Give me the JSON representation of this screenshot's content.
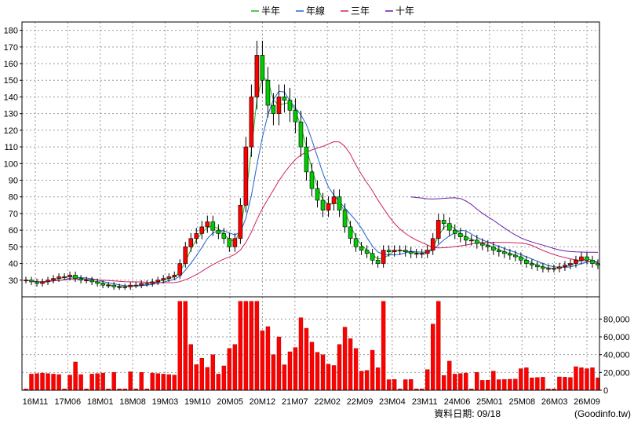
{
  "chart_data": {
    "type": "candlestick",
    "legend": [
      {
        "name": "半年",
        "color": "#22b022"
      },
      {
        "name": "年線",
        "color": "#1f62d0"
      },
      {
        "name": "三年",
        "color": "#cc2266"
      },
      {
        "name": "十年",
        "color": "#6a1aa8"
      }
    ],
    "x_labels": [
      "16M11",
      "17M06",
      "18M01",
      "18M08",
      "19M03",
      "19M10",
      "20M05",
      "20M12",
      "21M07",
      "22M02",
      "22M09",
      "23M04",
      "23M11",
      "24M06",
      "25M01",
      "25M08",
      "26M03",
      "26M09"
    ],
    "price_axis": {
      "ticks": [
        30,
        40,
        50,
        60,
        70,
        80,
        90,
        100,
        110,
        120,
        130,
        140,
        150,
        160,
        170,
        180
      ],
      "ylim": [
        20,
        185
      ]
    },
    "volume_axis": {
      "ticks": [
        "0",
        "20,000",
        "40,000",
        "60,000",
        "80,000"
      ],
      "tick_values": [
        0,
        20000,
        40000,
        60000,
        80000
      ],
      "ylim": [
        0,
        105000
      ]
    },
    "footer": "資料日期: 09/18",
    "source": "(Goodinfo.tw)",
    "closes": [
      30,
      29,
      28,
      29,
      30,
      31,
      32,
      32,
      33,
      31,
      30,
      30,
      29,
      28,
      27,
      27,
      26,
      26,
      26,
      27,
      27,
      28,
      28,
      29,
      30,
      31,
      32,
      33,
      40,
      50,
      55,
      58,
      62,
      65,
      60,
      58,
      55,
      50,
      55,
      75,
      110,
      140,
      165,
      150,
      135,
      130,
      140,
      138,
      132,
      125,
      110,
      95,
      85,
      78,
      72,
      76,
      80,
      72,
      62,
      55,
      50,
      48,
      46,
      42,
      40,
      48,
      47,
      48,
      48,
      47,
      46,
      46,
      46,
      48,
      55,
      66,
      64,
      60,
      58,
      56,
      54,
      54,
      52,
      51,
      50,
      48,
      47,
      46,
      45,
      44,
      42,
      40,
      39,
      38,
      37,
      37,
      37,
      38,
      39,
      40,
      42,
      44,
      42,
      40,
      39
    ]
  }
}
